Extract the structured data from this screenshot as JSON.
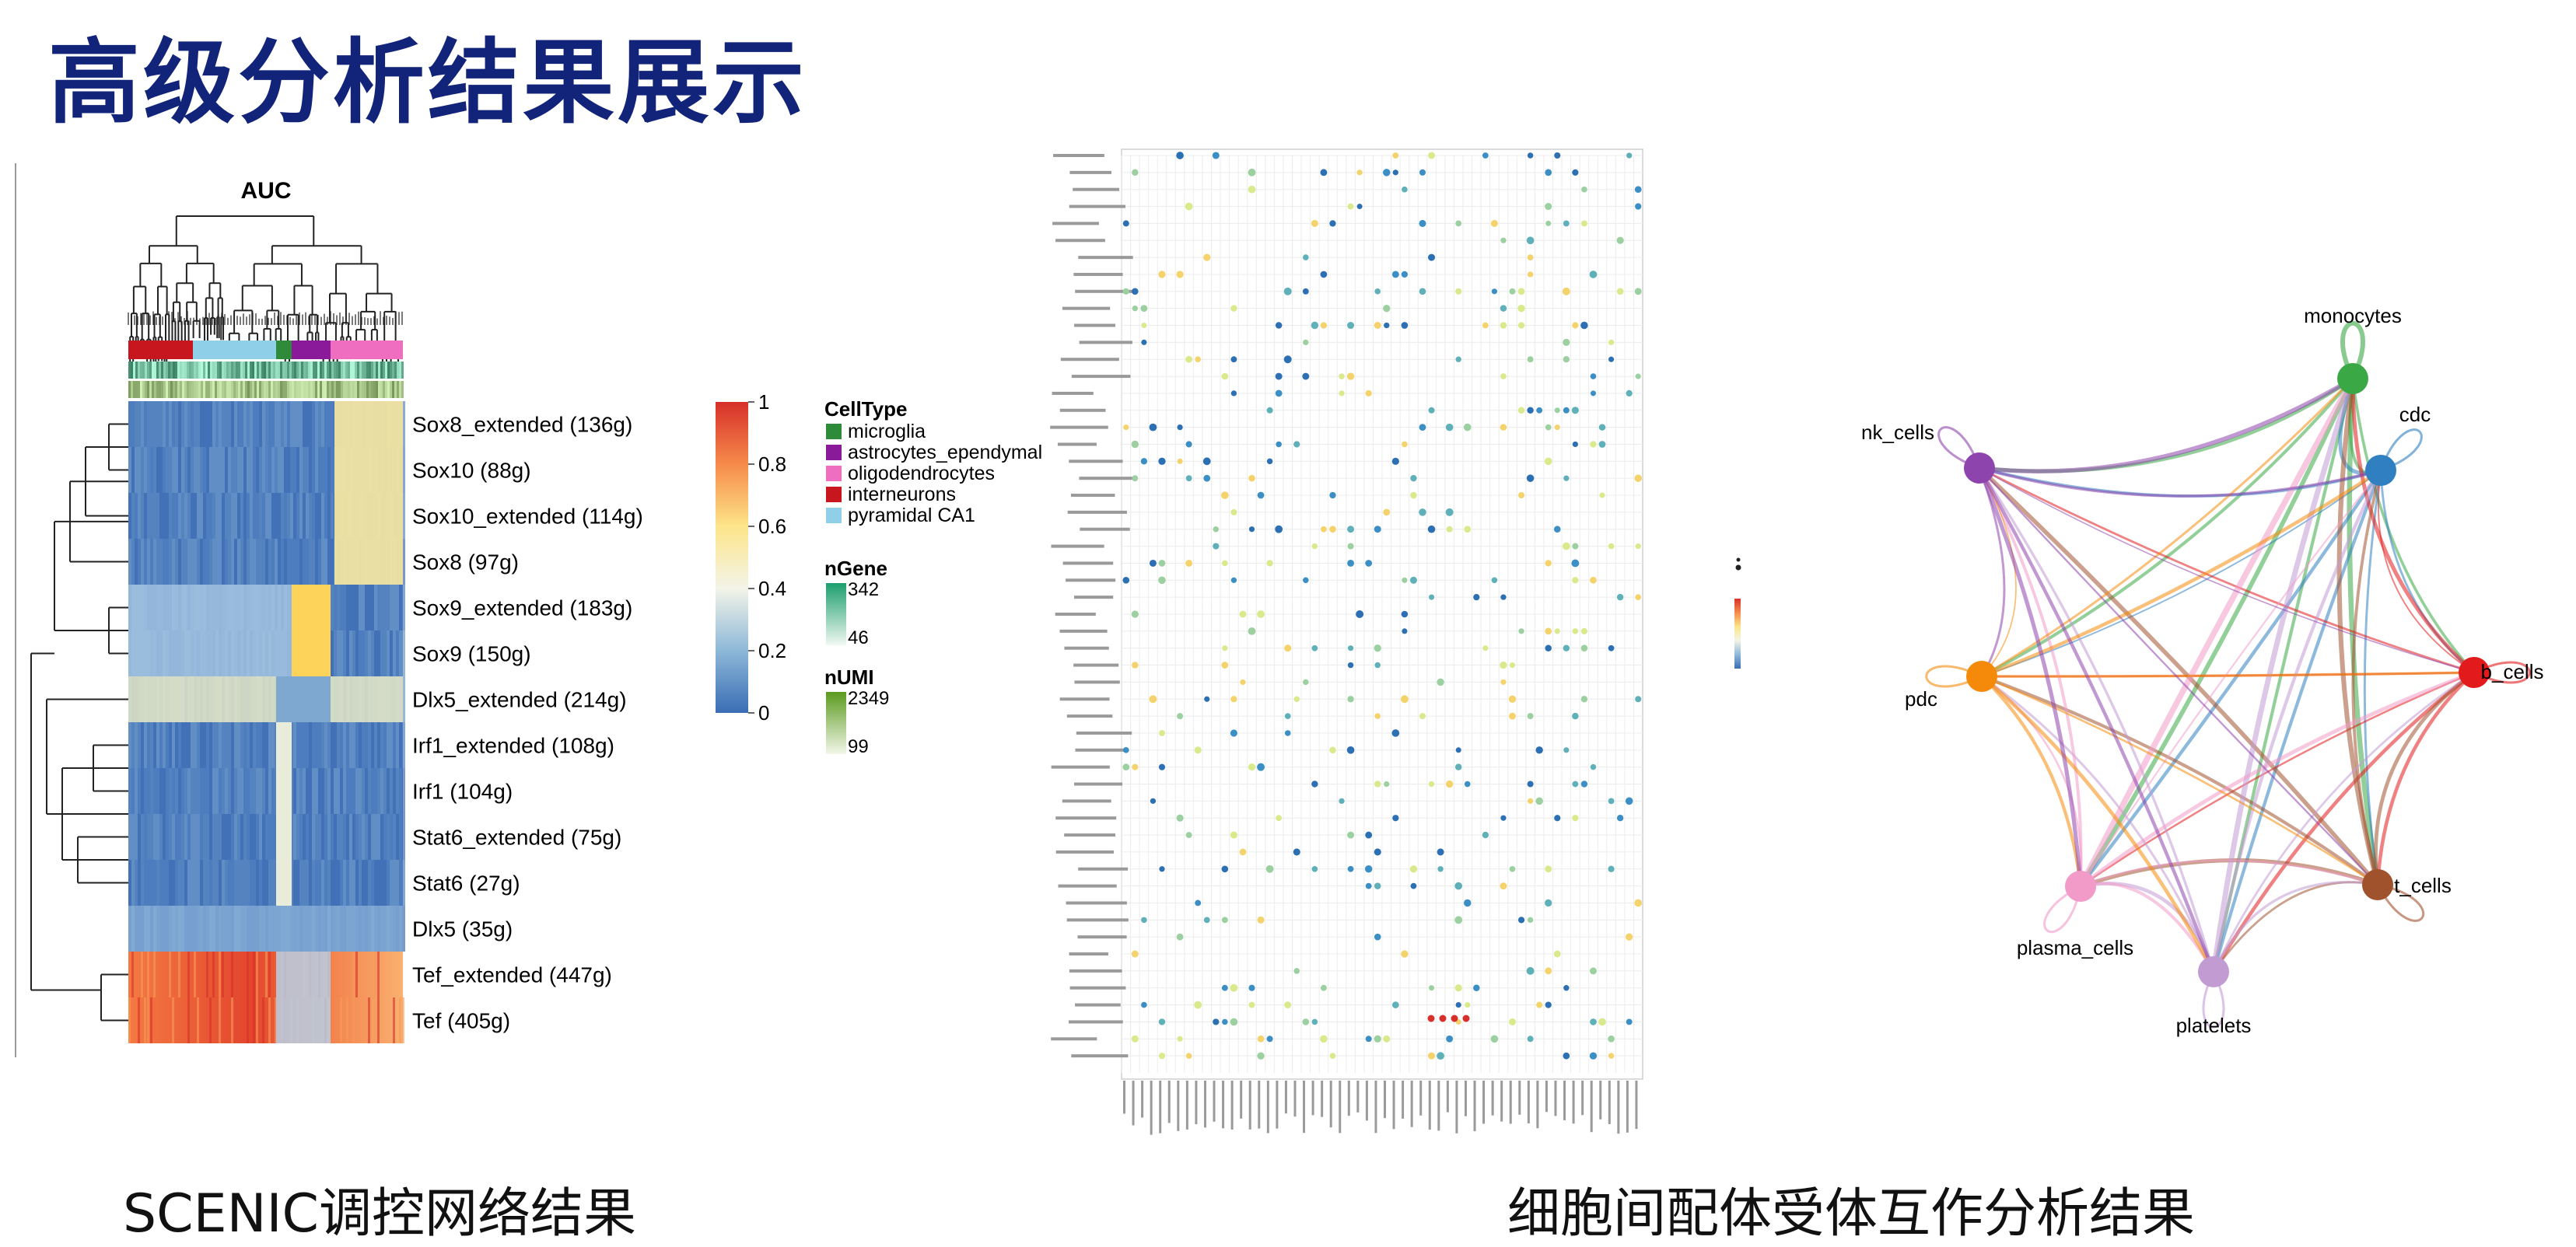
{
  "page_title": "高级分析结果展示",
  "captions": {
    "left": "SCENIC调控网络结果",
    "right": "细胞间配体受体互作分析结果"
  },
  "heatmap": {
    "title": "AUC",
    "rows": [
      "Sox8_extended (136g)",
      "Sox10 (88g)",
      "Sox10_extended (114g)",
      "Sox8 (97g)",
      "Sox9_extended (183g)",
      "Sox9 (150g)",
      "Dlx5_extended (214g)",
      "Irf1_extended (108g)",
      "Irf1 (104g)",
      "Stat6_extended (75g)",
      "Stat6 (27g)",
      "Dlx5 (35g)",
      "Tef_extended (447g)",
      "Tef (405g)"
    ],
    "colorbar_ticks": [
      "1",
      "0.8",
      "0.6",
      "0.4",
      "0.2",
      "0"
    ],
    "legend": {
      "celltype_title": "CellType",
      "celltypes": [
        {
          "label": "microglia",
          "color": "#2e8b3a"
        },
        {
          "label": "astrocytes_ependymal",
          "color": "#8b1a9a"
        },
        {
          "label": "oligodendrocytes",
          "color": "#f06ec0"
        },
        {
          "label": "interneurons",
          "color": "#c8161e"
        },
        {
          "label": "pyramidal CA1",
          "color": "#8fd0e8"
        }
      ],
      "ngene_title": "nGene",
      "ngene_max": "342",
      "ngene_min": "46",
      "numi_title": "nUMI",
      "numi_max": "2349",
      "numi_min": "99"
    }
  },
  "network": {
    "nodes": [
      {
        "label": "monocytes",
        "color": "#3aa845"
      },
      {
        "label": "cdc",
        "color": "#2f7fc1"
      },
      {
        "label": "b_cells",
        "color": "#e31a1c"
      },
      {
        "label": "t_cells",
        "color": "#a0522d"
      },
      {
        "label": "platelets",
        "color": "#c39bd3"
      },
      {
        "label": "plasma_cells",
        "color": "#f29ac8"
      },
      {
        "label": "pdc",
        "color": "#f58a0a"
      },
      {
        "label": "nk_cells",
        "color": "#8e44ad"
      }
    ]
  }
}
